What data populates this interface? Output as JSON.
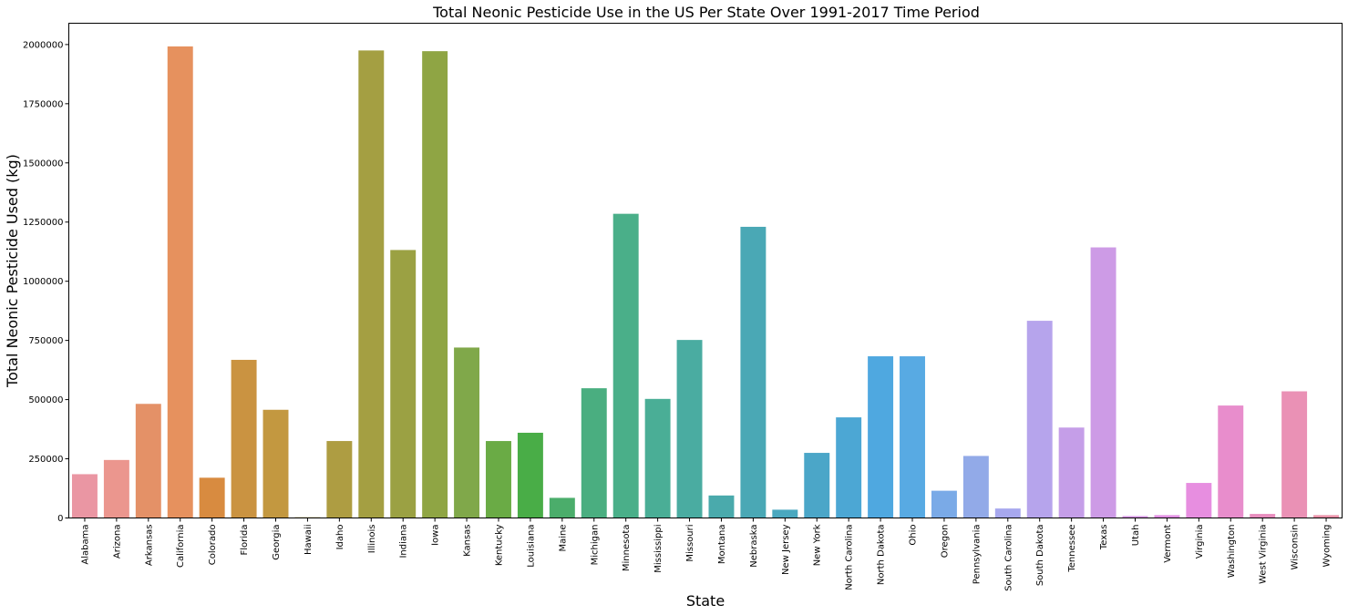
{
  "chart_data": {
    "type": "bar",
    "title": "Total Neonic Pesticide Use in the US Per State Over 1991-2017 Time Period",
    "xlabel": "State",
    "ylabel": "Total Neonic Pesticide Used (kg)",
    "ylim": [
      0,
      2090000
    ],
    "yticks": [
      0,
      250000,
      500000,
      750000,
      1000000,
      1250000,
      1500000,
      1750000,
      2000000
    ],
    "ytick_labels": [
      "0",
      "250000",
      "500000",
      "750000",
      "1000000",
      "1250000",
      "1500000",
      "1750000",
      "2000000"
    ],
    "grid": false,
    "categories": [
      "Alabama",
      "Arizona",
      "Arkansas",
      "California",
      "Colorado",
      "Florida",
      "Georgia",
      "Hawaii",
      "Idaho",
      "Illinois",
      "Indiana",
      "Iowa",
      "Kansas",
      "Kentucky",
      "Louisiana",
      "Maine",
      "Michigan",
      "Minnesota",
      "Mississippi",
      "Missouri",
      "Montana",
      "Nebraska",
      "New Jersey",
      "New York",
      "North Carolina",
      "North Dakota",
      "Ohio",
      "Oregon",
      "Pennsylvania",
      "South Carolina",
      "South Dakota",
      "Tennessee",
      "Texas",
      "Utah",
      "Vermont",
      "Virginia",
      "Washington",
      "West Virginia",
      "Wisconsin",
      "Wyoming"
    ],
    "values": [
      185000,
      245000,
      482000,
      1992000,
      170000,
      668000,
      457000,
      3000,
      325000,
      1975000,
      1132000,
      1972000,
      720000,
      325000,
      360000,
      85000,
      548000,
      1285000,
      503000,
      752000,
      95000,
      1230000,
      35000,
      275000,
      425000,
      683000,
      683000,
      115000,
      262000,
      40000,
      833000,
      382000,
      1143000,
      8000,
      12000,
      148000,
      475000,
      17000,
      535000,
      12000
    ],
    "colors": [
      "#ea96a3",
      "#eb968e",
      "#e49167",
      "#e6915e",
      "#d88b40",
      "#ca9341",
      "#c39840",
      "#b89d41",
      "#ae9d42",
      "#a49f42",
      "#9ba143",
      "#8fa544",
      "#80a84a",
      "#6aab45",
      "#49ad47",
      "#4bad6b",
      "#4aae80",
      "#4aaf89",
      "#4aae96",
      "#4aaca1",
      "#4aaaac",
      "#4aa8b5",
      "#4aa8bf",
      "#4ba6c8",
      "#4ca7d4",
      "#4fa8e0",
      "#58aae3",
      "#7aaae7",
      "#92aae8",
      "#a7a8ee",
      "#b6a4ec",
      "#c59ee8",
      "#cd9be6",
      "#d896e5",
      "#e291e4",
      "#e78ee0",
      "#e88dcc",
      "#e88dbe",
      "#ea91b5",
      "#eb93aa"
    ]
  }
}
